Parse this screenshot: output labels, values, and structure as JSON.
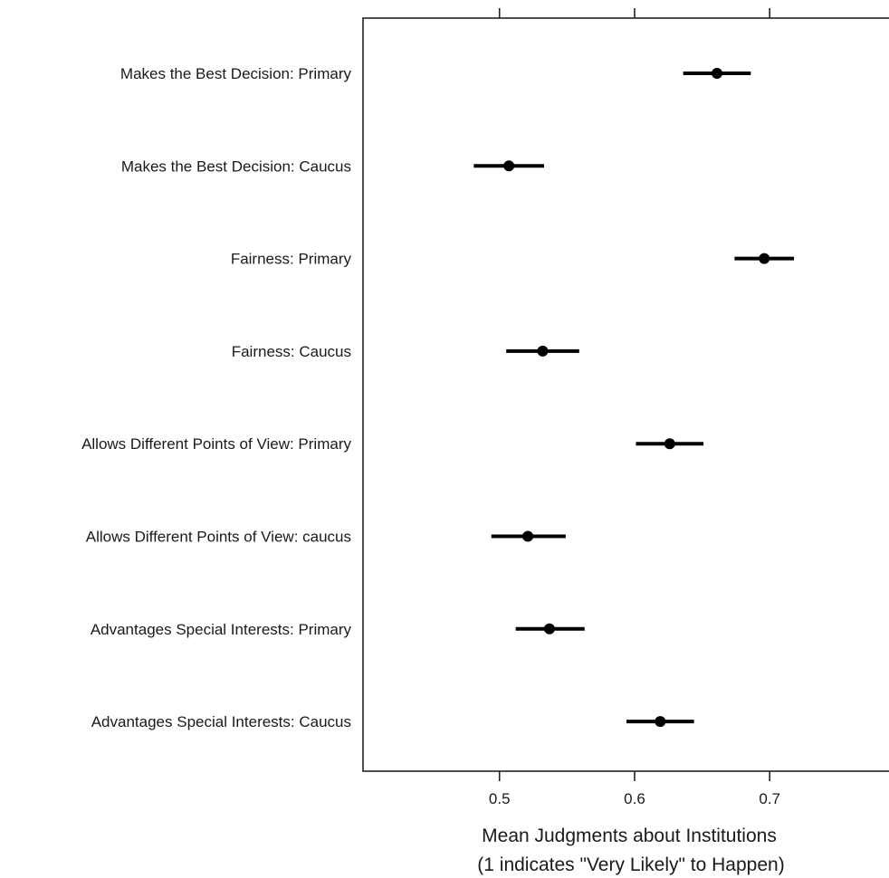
{
  "chart_data": {
    "type": "dotplot",
    "title": "",
    "xlabel_lines": [
      "Mean Judgments about Institutions",
      "(1 indicates \"Very Likely\" to Happen)"
    ],
    "ylabel": "",
    "xlim": [
      0.399,
      0.791
    ],
    "xticks": [
      0.5,
      0.6,
      0.7
    ],
    "xtick_labels": [
      "0.5",
      "0.6",
      "0.7"
    ],
    "grid": false,
    "points": [
      {
        "label": "Makes the Best Decision: Primary",
        "mean": 0.661,
        "low": 0.636,
        "high": 0.686
      },
      {
        "label": "Makes the Best Decision: Caucus",
        "mean": 0.507,
        "low": 0.481,
        "high": 0.533
      },
      {
        "label": "Fairness: Primary",
        "mean": 0.696,
        "low": 0.674,
        "high": 0.718
      },
      {
        "label": "Fairness: Caucus",
        "mean": 0.532,
        "low": 0.505,
        "high": 0.559
      },
      {
        "label": "Allows Different Points of View: Primary",
        "mean": 0.626,
        "low": 0.601,
        "high": 0.651
      },
      {
        "label": "Allows Different Points of View: caucus",
        "mean": 0.521,
        "low": 0.494,
        "high": 0.549
      },
      {
        "label": "Advantages Special Interests: Primary",
        "mean": 0.537,
        "low": 0.512,
        "high": 0.563
      },
      {
        "label": "Advantages Special Interests: Caucus",
        "mean": 0.619,
        "low": 0.594,
        "high": 0.644
      }
    ]
  }
}
